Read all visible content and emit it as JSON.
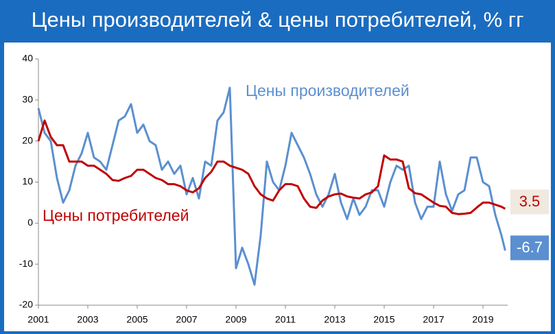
{
  "chart_data": {
    "type": "line",
    "title": "Цены производителей & цены потребителей, % гг",
    "x": [
      2001,
      2001.25,
      2001.5,
      2001.75,
      2002,
      2002.25,
      2002.5,
      2002.75,
      2003,
      2003.25,
      2003.5,
      2003.75,
      2004,
      2004.25,
      2004.5,
      2004.75,
      2005,
      2005.25,
      2005.5,
      2005.75,
      2006,
      2006.25,
      2006.5,
      2006.75,
      2007,
      2007.25,
      2007.5,
      2007.75,
      2008,
      2008.25,
      2008.5,
      2008.75,
      2009,
      2009.25,
      2009.5,
      2009.75,
      2010,
      2010.25,
      2010.5,
      2010.75,
      2011,
      2011.25,
      2011.5,
      2011.75,
      2012,
      2012.25,
      2012.5,
      2012.75,
      2013,
      2013.25,
      2013.5,
      2013.75,
      2014,
      2014.25,
      2014.5,
      2014.75,
      2015,
      2015.25,
      2015.5,
      2015.75,
      2016,
      2016.25,
      2016.5,
      2016.75,
      2017,
      2017.25,
      2017.5,
      2017.75,
      2018,
      2018.25,
      2018.5,
      2018.75,
      2019,
      2019.25,
      2019.5,
      2019.75,
      2019.9
    ],
    "series": [
      {
        "name": "Цены производителей",
        "color": "#5b8fd0",
        "end_label": "-6.7",
        "values": [
          28,
          22,
          20,
          11,
          5,
          8,
          14,
          17,
          22,
          16,
          15,
          13,
          19,
          25,
          26,
          29,
          22,
          24,
          20,
          19,
          13,
          15,
          12,
          14,
          7,
          11,
          6,
          15,
          14,
          25,
          27,
          33,
          -11,
          -6,
          -10,
          -15,
          -3,
          15,
          10,
          8,
          14,
          22,
          19,
          16,
          12,
          7,
          4,
          7,
          12,
          5,
          1,
          6,
          2,
          4,
          8,
          8,
          4,
          10,
          14,
          13,
          14,
          5,
          1,
          4,
          4,
          15,
          7,
          3,
          7,
          8,
          16,
          16,
          10,
          9,
          2,
          -3,
          -6.7
        ]
      },
      {
        "name": "Цены потребителей",
        "color": "#c00000",
        "end_label": "3.5",
        "values": [
          20,
          25,
          21,
          19,
          19,
          15,
          15,
          15,
          14,
          14,
          13,
          12,
          10.5,
          10.3,
          11,
          11.5,
          13,
          13,
          12,
          11,
          10.5,
          9.5,
          9.5,
          9,
          8,
          7.5,
          8.5,
          11,
          12.5,
          15,
          15,
          14,
          13.5,
          13,
          12,
          9,
          7,
          6,
          5.5,
          8,
          9.5,
          9.5,
          9,
          6,
          4,
          3.7,
          5.5,
          6.5,
          7,
          7.2,
          6.5,
          6.2,
          6,
          7,
          7.5,
          9,
          16.5,
          15.5,
          15.5,
          15,
          8.5,
          7.3,
          7,
          6,
          5,
          4.2,
          4,
          2.5,
          2.2,
          2.3,
          2.5,
          3.8,
          5,
          5,
          4.5,
          4,
          3.5
        ]
      }
    ],
    "xlim": [
      2001,
      2020
    ],
    "xticks": [
      2001,
      2003,
      2005,
      2007,
      2009,
      2011,
      2013,
      2015,
      2017,
      2019
    ],
    "ylim": [
      -20,
      40
    ],
    "yticks": [
      -20,
      -10,
      0,
      10,
      20,
      30,
      40
    ]
  }
}
